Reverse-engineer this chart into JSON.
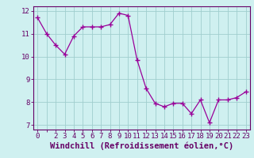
{
  "x": [
    0,
    1,
    2,
    3,
    4,
    5,
    6,
    7,
    8,
    9,
    10,
    11,
    12,
    13,
    14,
    15,
    16,
    17,
    18,
    19,
    20,
    21,
    22,
    23
  ],
  "y": [
    11.7,
    11.0,
    10.5,
    10.1,
    10.9,
    11.3,
    11.3,
    11.3,
    11.4,
    11.9,
    11.8,
    9.85,
    8.6,
    7.95,
    7.8,
    7.95,
    7.95,
    7.5,
    8.1,
    7.1,
    8.1,
    8.1,
    8.2,
    8.45
  ],
  "line_color": "#990099",
  "marker": "+",
  "marker_size": 4,
  "marker_lw": 1.0,
  "line_width": 0.9,
  "bg_color": "#cff0f0",
  "grid_color": "#a0cece",
  "tick_color": "#660066",
  "label_color": "#660066",
  "xlabel": "Windchill (Refroidissement éolien,°C)",
  "ylim": [
    6.8,
    12.2
  ],
  "xlim": [
    -0.5,
    23.5
  ],
  "yticks": [
    7,
    8,
    9,
    10,
    11,
    12
  ],
  "xticks": [
    0,
    2,
    3,
    4,
    5,
    6,
    7,
    8,
    9,
    10,
    11,
    12,
    13,
    14,
    15,
    16,
    17,
    18,
    19,
    20,
    21,
    22,
    23
  ],
  "xlabel_fontsize": 7.5,
  "tick_fontsize": 6.5,
  "fig_w": 3.2,
  "fig_h": 2.0,
  "dpi": 100
}
